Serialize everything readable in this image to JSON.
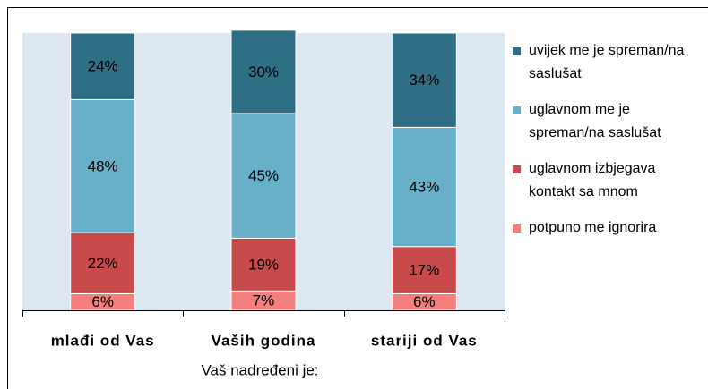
{
  "chart_data": {
    "type": "stacked_bar",
    "categories": [
      "mlađi od Vas",
      "Vaših godina",
      "stariji od Vas"
    ],
    "xlabel": "Vaš nadređeni je:",
    "ylim": [
      0,
      100
    ],
    "series": [
      {
        "name": "potpuno me ignorira",
        "color": "#f47f7f",
        "values": [
          6,
          7,
          6
        ],
        "value_labels": [
          "6%",
          "7%",
          "6%"
        ]
      },
      {
        "name": "uglavnom izbjegava kontakt sa mnom",
        "color": "#c84a4a",
        "values": [
          22,
          19,
          17
        ],
        "value_labels": [
          "22%",
          "19%",
          "17%"
        ]
      },
      {
        "name": "uglavnom me je spreman/na saslušat",
        "color": "#68b0c8",
        "values": [
          48,
          45,
          43
        ],
        "value_labels": [
          "48%",
          "45%",
          "43%"
        ]
      },
      {
        "name": "uvijek me je spreman/na saslušat",
        "color": "#2f6f86",
        "values": [
          24,
          30,
          34
        ],
        "value_labels": [
          "24%",
          "30%",
          "34%"
        ]
      }
    ]
  }
}
